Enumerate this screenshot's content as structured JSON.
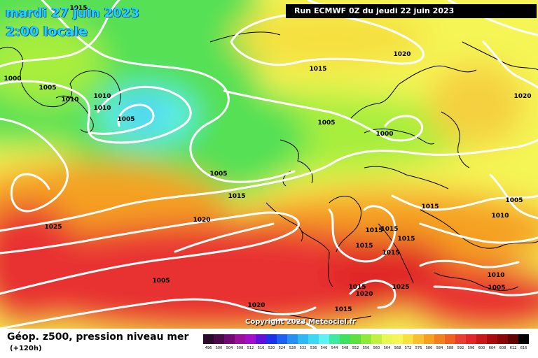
{
  "header": {
    "date_line": "mardi 27 juin 2023",
    "time_line": "2:00 locale",
    "run_info": "Run ECMWF 0Z du jeudi 22 juin 2023"
  },
  "map": {
    "copyright": "Copyright 2023 Meteociel.fr",
    "isobar_labels": [
      "1015",
      "1020",
      "1000",
      "1005",
      "1010",
      "1010",
      "1010",
      "1015",
      "1020",
      "1005",
      "1005",
      "1005",
      "1000",
      "1015",
      "1015",
      "1025",
      "1020",
      "1015",
      "1015",
      "1015",
      "1015",
      "1015",
      "1010",
      "1005",
      "1005",
      "1010",
      "1005",
      "1025",
      "1015",
      "1020",
      "1020",
      "1015",
      "1020"
    ],
    "colors": {
      "deep_low": "#3fb8f5",
      "cyan": "#5ff2f2",
      "green": "#55e055",
      "lime": "#a8ee3c",
      "yellow": "#f5f555",
      "orange": "#f5a020",
      "red": "#e83030",
      "isobar": "#ffffff",
      "coast": "#000000"
    }
  },
  "footer": {
    "title": "Géop. z500, pression niveau mer",
    "subtitle": "(+120h)"
  },
  "legend": {
    "ticks": [
      "496",
      "500",
      "504",
      "508",
      "512",
      "516",
      "520",
      "524",
      "528",
      "532",
      "536",
      "540",
      "544",
      "548",
      "552",
      "556",
      "560",
      "564",
      "568",
      "572",
      "576",
      "580",
      "584",
      "588",
      "592",
      "596",
      "600",
      "604",
      "608",
      "612",
      "616"
    ],
    "colors": [
      "#2a0a2a",
      "#4a0a4a",
      "#700a70",
      "#9a109a",
      "#a010c8",
      "#6010d8",
      "#2030e8",
      "#2060f0",
      "#2890f0",
      "#30b8f0",
      "#40d8f0",
      "#5ff2f2",
      "#40e8a0",
      "#40e060",
      "#60e040",
      "#90e838",
      "#c0f040",
      "#e8f850",
      "#f5f555",
      "#f8e040",
      "#f8c030",
      "#f5a020",
      "#f08020",
      "#f06020",
      "#e84030",
      "#e02828",
      "#c81818",
      "#a80c0c",
      "#880808",
      "#600404",
      "#000000"
    ]
  }
}
